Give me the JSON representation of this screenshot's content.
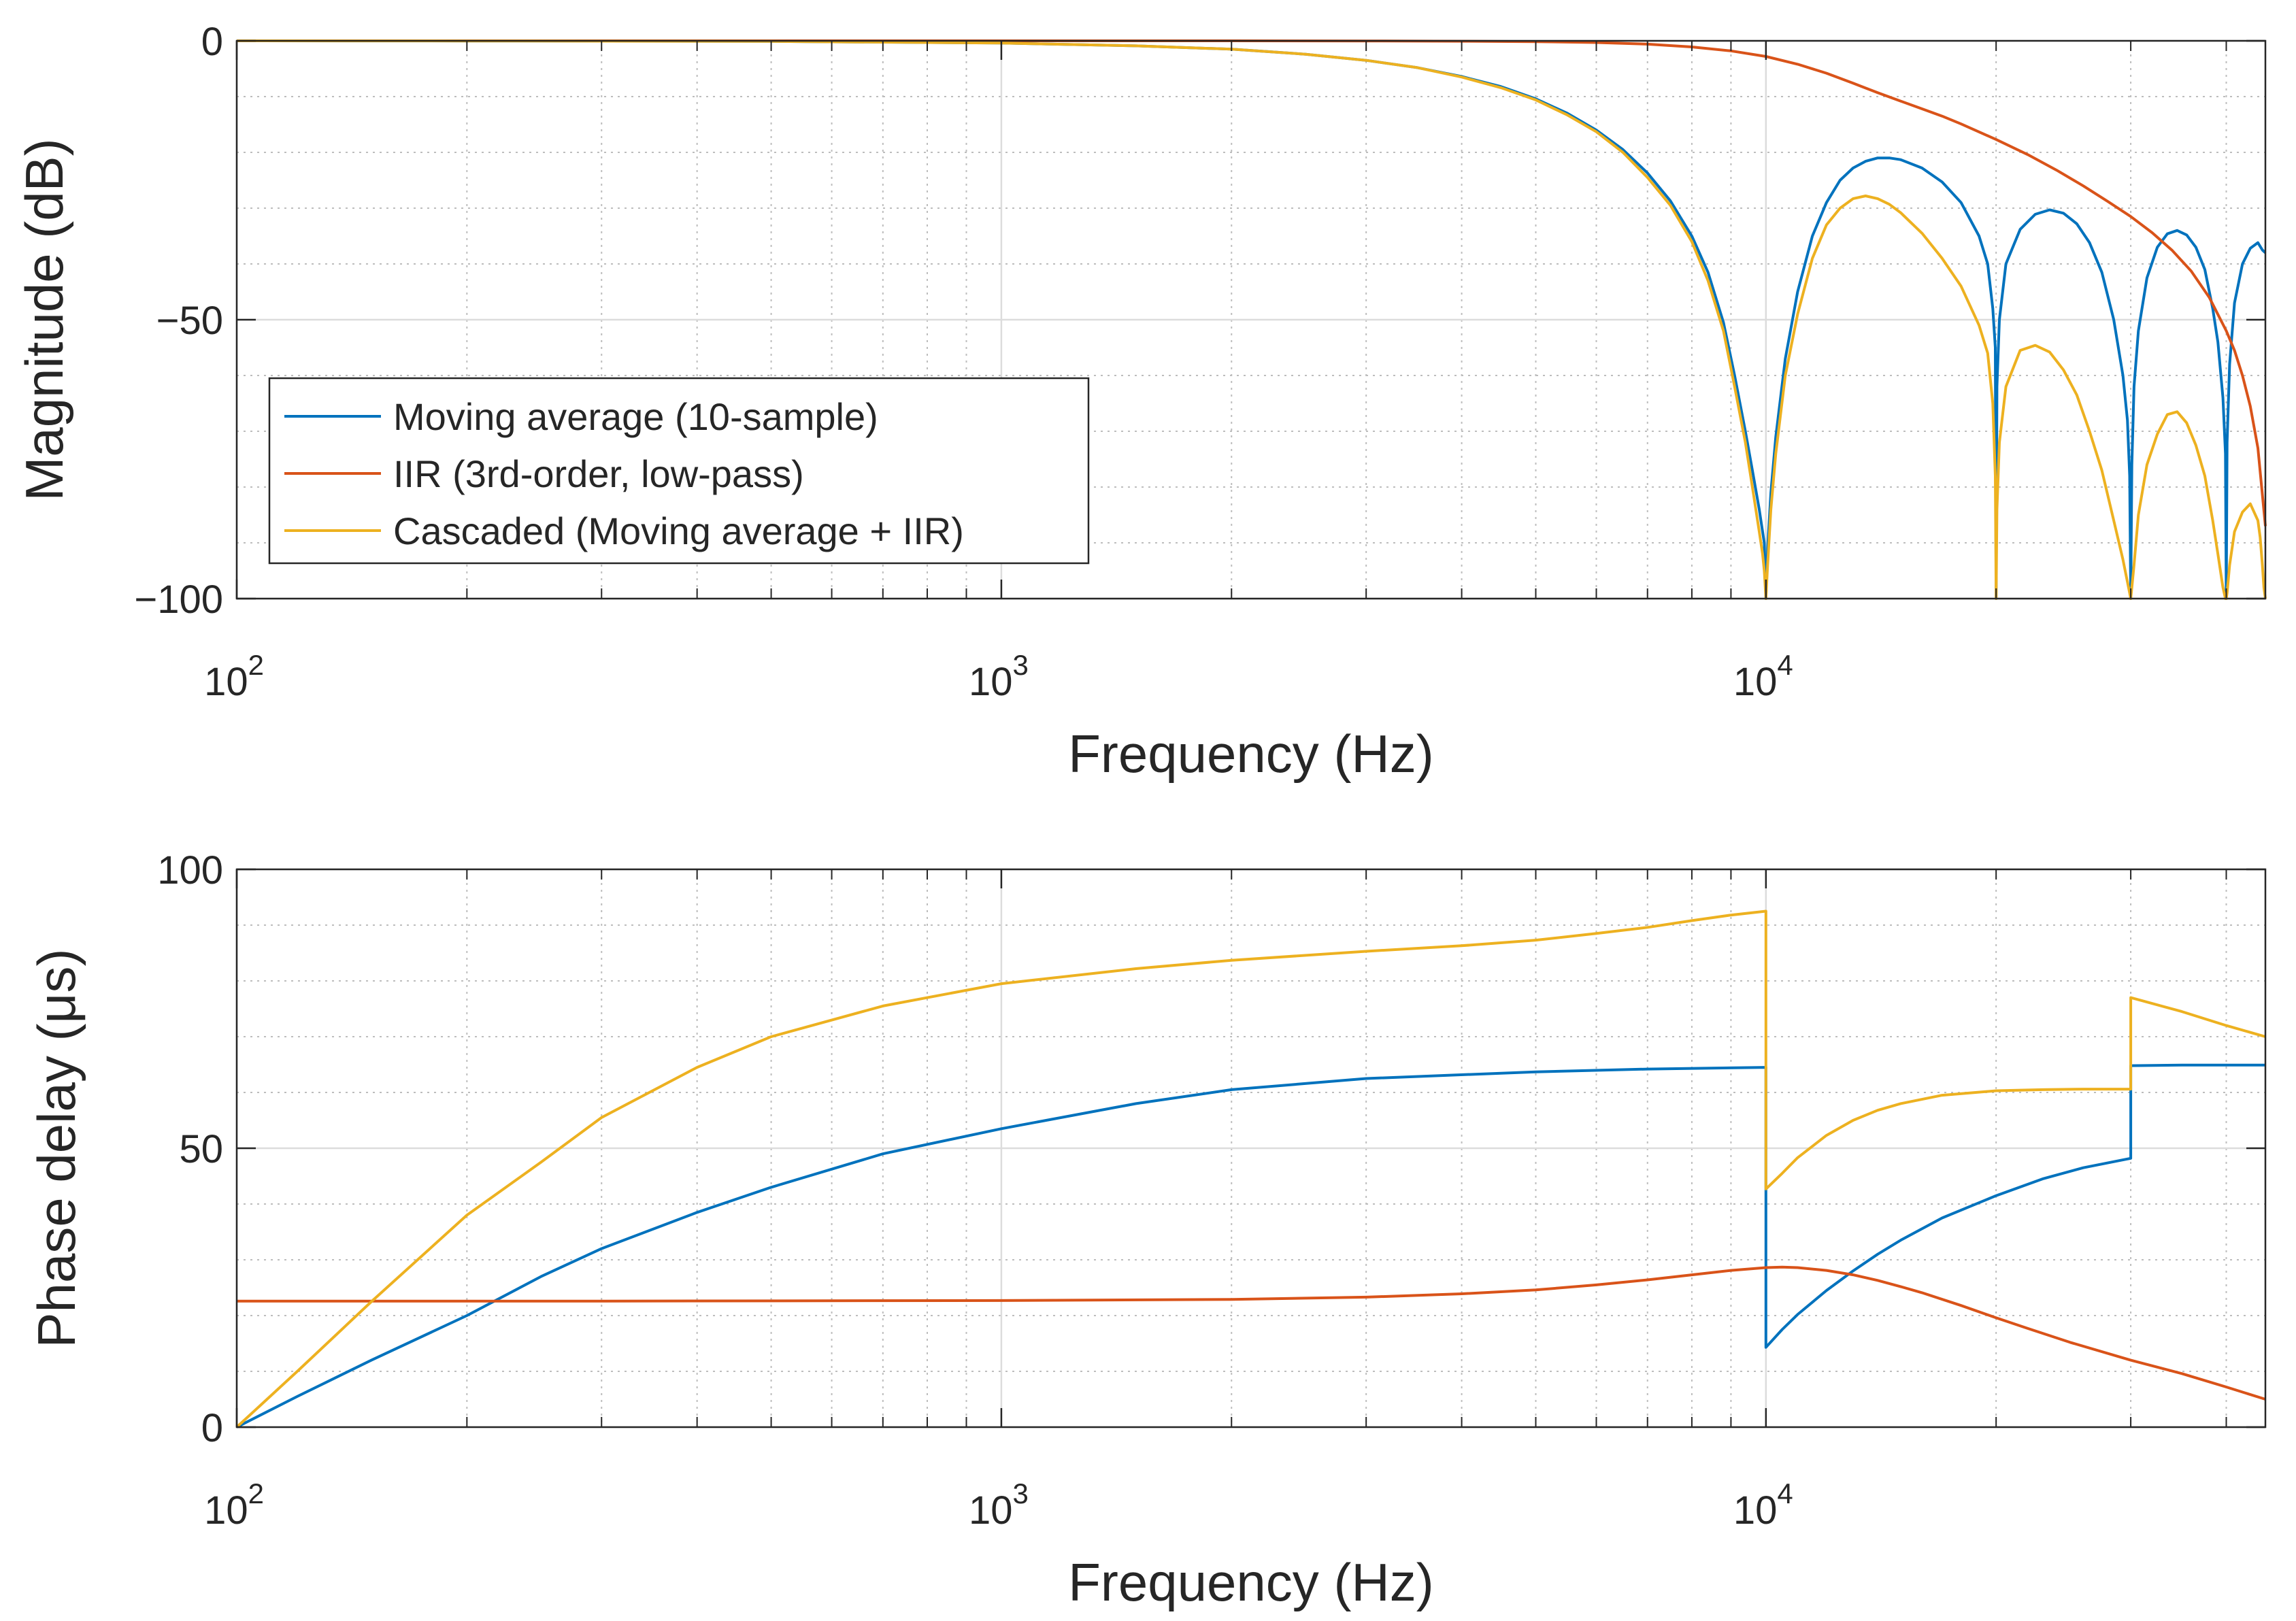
{
  "chart_data": [
    {
      "id": "magnitude",
      "type": "line",
      "xscale": "log",
      "xlim": [
        100,
        45000
      ],
      "ylim": [
        -100,
        0
      ],
      "grid": true,
      "minor_grid": true,
      "xlabel": "Frequency (Hz)",
      "ylabel": "Magnitude (dB)",
      "xticks": [
        {
          "value": 100,
          "base": "10",
          "exp": "2"
        },
        {
          "value": 1000,
          "base": "10",
          "exp": "3"
        },
        {
          "value": 10000,
          "base": "10",
          "exp": "4"
        }
      ],
      "yticks": [
        {
          "value": 0,
          "label": "0"
        },
        {
          "value": -50,
          "label": "−50"
        },
        {
          "value": -100,
          "label": "−100"
        }
      ],
      "legend": {
        "position": "lower-left",
        "entries": [
          "Moving average (10-sample)",
          "IIR (3rd-order, low-pass)",
          "Cascaded (Moving average + IIR)"
        ]
      },
      "series": [
        {
          "name": "Moving average (10-sample)",
          "color": "#0072BD",
          "x": [
            100,
            200,
            500,
            1000,
            1500,
            2000,
            2500,
            3000,
            3500,
            4000,
            4500,
            5000,
            5500,
            6000,
            6500,
            7000,
            7500,
            8000,
            8400,
            8800,
            9100,
            9400,
            9600,
            9800,
            9900,
            9950,
            10000,
            10050,
            10150,
            10300,
            10600,
            11000,
            11500,
            12000,
            12500,
            13000,
            13500,
            14000,
            14500,
            15000,
            16000,
            17000,
            18000,
            19000,
            19500,
            19800,
            19950,
            20000,
            20050,
            20200,
            20600,
            21500,
            22500,
            23500,
            24500,
            25500,
            26500,
            27500,
            28500,
            29300,
            29700,
            29900,
            30000,
            30100,
            30300,
            30700,
            31500,
            32500,
            33500,
            34500,
            35500,
            36500,
            37500,
            38400,
            39000,
            39600,
            39900,
            40000,
            40100,
            40400,
            41000,
            42000,
            43000,
            44000,
            44600,
            45000
          ],
          "values": [
            0,
            -0.02,
            -0.1,
            -0.4,
            -0.9,
            -1.5,
            -2.4,
            -3.5,
            -4.8,
            -6.4,
            -8.2,
            -10.4,
            -13,
            -16,
            -19.5,
            -23.7,
            -28.7,
            -35,
            -41.5,
            -50.5,
            -60,
            -70,
            -77,
            -84,
            -88,
            -90,
            -100,
            -91,
            -81,
            -71,
            -57,
            -45,
            -35,
            -29,
            -25,
            -22.8,
            -21.6,
            -21,
            -21,
            -21.3,
            -22.8,
            -25.3,
            -29,
            -35,
            -40,
            -48,
            -55,
            -100,
            -62,
            -50,
            -40,
            -33.8,
            -31.1,
            -30.3,
            -30.9,
            -32.8,
            -36.2,
            -41.5,
            -50,
            -60,
            -68,
            -78,
            -100,
            -76,
            -62,
            -52,
            -42.5,
            -37,
            -34.6,
            -34,
            -34.8,
            -37,
            -41,
            -48,
            -54,
            -64,
            -74,
            -100,
            -72,
            -58,
            -47,
            -40,
            -37.2,
            -36.2,
            -37.5,
            -38
          ]
        },
        {
          "name": "IIR (3rd-order, low-pass)",
          "color": "#D95319",
          "x": [
            100,
            300,
            1000,
            2000,
            3000,
            4000,
            5000,
            6000,
            7000,
            8000,
            9000,
            10000,
            11000,
            12000,
            13000,
            14000,
            15000,
            16000,
            17000,
            18000,
            20000,
            22000,
            24000,
            26000,
            28000,
            30000,
            32000,
            34000,
            36000,
            38000,
            40000,
            41000,
            42000,
            43000,
            44000,
            44500,
            45000
          ],
          "values": [
            0,
            0,
            0,
            0,
            -0.02,
            -0.07,
            -0.15,
            -0.3,
            -0.6,
            -1.1,
            -1.8,
            -2.8,
            -4.2,
            -5.8,
            -7.6,
            -9.3,
            -10.8,
            -12.2,
            -13.5,
            -14.9,
            -17.7,
            -20.4,
            -23.2,
            -26,
            -28.8,
            -31.5,
            -34.4,
            -37.6,
            -41.3,
            -46,
            -52,
            -55.5,
            -60,
            -65.5,
            -73,
            -80,
            -87
          ]
        },
        {
          "name": "Cascaded (Moving average + IIR)",
          "color": "#EDB120",
          "x": [
            100,
            200,
            500,
            1000,
            1500,
            2000,
            2500,
            3000,
            3500,
            4000,
            4500,
            5000,
            5500,
            6000,
            6500,
            7000,
            7500,
            8000,
            8400,
            8800,
            9100,
            9400,
            9600,
            9800,
            9900,
            9950,
            10000,
            10050,
            10150,
            10300,
            10600,
            11000,
            11500,
            12000,
            12500,
            13000,
            13500,
            14000,
            14500,
            15000,
            16000,
            17000,
            18000,
            19000,
            19500,
            19800,
            19950,
            20000,
            20050,
            20200,
            20600,
            21500,
            22500,
            23500,
            24500,
            25500,
            26500,
            27500,
            28500,
            29300,
            29700,
            29900,
            30000,
            30100,
            30300,
            30700,
            31500,
            32500,
            33500,
            34500,
            35500,
            36500,
            37500,
            38400,
            39000,
            39600,
            39900,
            40000,
            40100,
            40400,
            41000,
            42000,
            43000,
            44000,
            44300,
            44600,
            44800,
            45000
          ],
          "values": [
            0,
            -0.02,
            -0.1,
            -0.4,
            -0.9,
            -1.5,
            -2.4,
            -3.5,
            -4.8,
            -6.5,
            -8.4,
            -10.6,
            -13.3,
            -16.3,
            -20,
            -24.5,
            -29.5,
            -36,
            -43,
            -52,
            -62,
            -72,
            -80,
            -88,
            -92,
            -95,
            -100,
            -94,
            -84,
            -74,
            -60,
            -49,
            -39,
            -33,
            -30,
            -28.3,
            -27.8,
            -28.3,
            -29.3,
            -30.8,
            -34.5,
            -39,
            -44,
            -51,
            -56,
            -65,
            -78,
            -100,
            -84,
            -72,
            -62,
            -55.5,
            -54.6,
            -55.8,
            -59,
            -63.5,
            -70,
            -77,
            -86,
            -93,
            -97,
            -99,
            -100,
            -98,
            -94,
            -85,
            -76,
            -70.5,
            -67,
            -66.5,
            -68.5,
            -72.5,
            -78,
            -86,
            -92,
            -98,
            -100,
            -100,
            -99,
            -94,
            -88,
            -84.5,
            -83,
            -86,
            -89,
            -94,
            -98,
            -100
          ]
        }
      ]
    },
    {
      "id": "phase-delay",
      "type": "line",
      "xscale": "log",
      "xlim": [
        100,
        45000
      ],
      "ylim": [
        0,
        100
      ],
      "grid": true,
      "minor_grid": true,
      "xlabel": "Frequency (Hz)",
      "ylabel": "Phase delay (μs)",
      "xticks": [
        {
          "value": 100,
          "base": "10",
          "exp": "2"
        },
        {
          "value": 1000,
          "base": "10",
          "exp": "3"
        },
        {
          "value": 10000,
          "base": "10",
          "exp": "4"
        }
      ],
      "yticks": [
        {
          "value": 0,
          "label": "0"
        },
        {
          "value": 50,
          "label": "50"
        },
        {
          "value": 100,
          "label": "100"
        }
      ],
      "series": [
        {
          "name": "Moving average (10-sample)",
          "color": "#0072BD",
          "x": [
            100,
            120,
            150,
            200,
            250,
            300,
            400,
            500,
            700,
            1000,
            1500,
            2000,
            3000,
            5000,
            7000,
            9999,
            10000,
            10500,
            11000,
            12000,
            13000,
            14000,
            15000,
            17000,
            20000,
            23000,
            26000,
            29999,
            30000,
            35000,
            40000,
            45000
          ],
          "values": [
            0,
            5.5,
            12,
            20,
            27,
            32,
            38.5,
            43,
            49,
            53.5,
            58,
            60.5,
            62.5,
            63.7,
            64.2,
            64.5,
            14.3,
            17.5,
            20.2,
            24.5,
            28,
            31,
            33.5,
            37.5,
            41.5,
            44.5,
            46.5,
            48.2,
            64.8,
            64.9,
            64.9,
            64.9
          ]
        },
        {
          "name": "IIR (3rd-order, low-pass)",
          "color": "#D95319",
          "x": [
            100,
            300,
            1000,
            2000,
            3000,
            4000,
            5000,
            6000,
            7000,
            8000,
            9000,
            10000,
            10500,
            11000,
            12000,
            13000,
            14000,
            15000,
            16000,
            18000,
            20000,
            22000,
            25000,
            30000,
            35000,
            40000,
            45000
          ],
          "values": [
            22.6,
            22.6,
            22.7,
            22.9,
            23.3,
            23.9,
            24.6,
            25.5,
            26.4,
            27.3,
            28.1,
            28.6,
            28.7,
            28.6,
            28.1,
            27.3,
            26.3,
            25.2,
            24.1,
            21.8,
            19.6,
            17.7,
            15.2,
            12,
            9.6,
            7.2,
            5
          ]
        },
        {
          "name": "Cascaded (Moving average + IIR)",
          "color": "#EDB120",
          "x": [
            100,
            120,
            150,
            200,
            250,
            300,
            400,
            500,
            700,
            1000,
            1500,
            2000,
            3000,
            4000,
            5000,
            6000,
            7000,
            8000,
            9000,
            9999,
            10000,
            10500,
            11000,
            12000,
            13000,
            14000,
            15000,
            17000,
            20000,
            23000,
            26000,
            29999,
            30000,
            35000,
            40000,
            45000
          ],
          "values": [
            0,
            10,
            22.5,
            38,
            47.5,
            55.5,
            64.5,
            70,
            75.5,
            79.5,
            82.2,
            83.7,
            85.3,
            86.3,
            87.3,
            88.5,
            89.6,
            90.8,
            91.8,
            92.5,
            42.7,
            45.5,
            48.3,
            52.3,
            55,
            56.8,
            58,
            59.5,
            60.3,
            60.5,
            60.6,
            60.6,
            77,
            74.5,
            72,
            70
          ]
        }
      ]
    }
  ]
}
